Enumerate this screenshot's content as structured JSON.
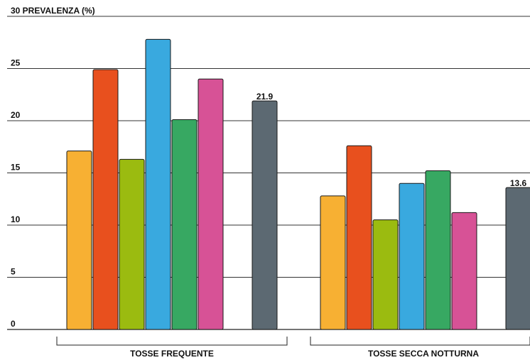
{
  "chart_data": {
    "type": "bar",
    "title": "",
    "ylabel": "PREVALENZA (%)",
    "xlabel": "",
    "ylim": [
      0,
      30
    ],
    "yticks": [
      0,
      5,
      10,
      15,
      20,
      25,
      30
    ],
    "grid": true,
    "categories": [
      "TOSSE FREQUENTE",
      "TOSSE SECCA NOTTURNA"
    ],
    "series": [
      {
        "color": "#F7B033",
        "values": [
          17.1,
          12.8
        ]
      },
      {
        "color": "#E8501E",
        "values": [
          24.9,
          17.6
        ]
      },
      {
        "color": "#9BBB10",
        "values": [
          16.3,
          10.5
        ]
      },
      {
        "color": "#39A9DF",
        "values": [
          27.8,
          14.0
        ]
      },
      {
        "color": "#37A862",
        "values": [
          20.1,
          15.2
        ]
      },
      {
        "color": "#D75296",
        "values": [
          24.0,
          11.2
        ]
      },
      {
        "color": "#5C6972",
        "values": [
          21.9,
          13.6
        ],
        "labels": [
          "21.9",
          "13.6"
        ]
      }
    ]
  }
}
